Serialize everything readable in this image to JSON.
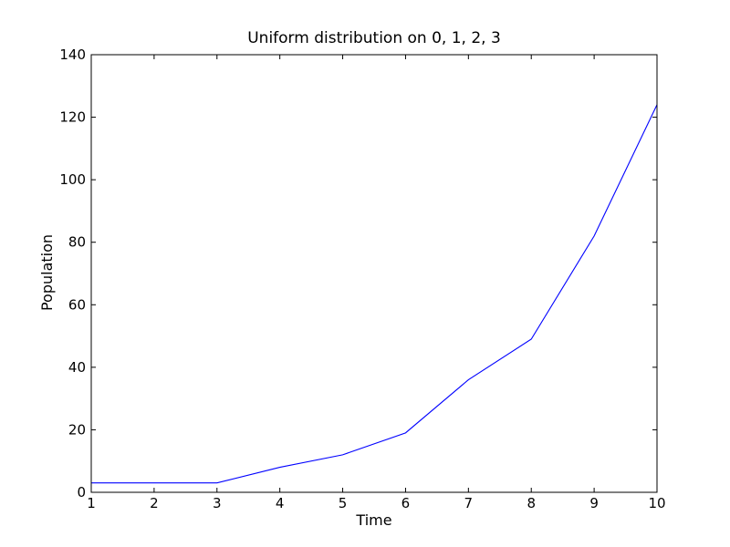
{
  "chart_data": {
    "type": "line",
    "title": "Uniform distribution on 0, 1, 2, 3",
    "xlabel": "Time",
    "ylabel": "Population",
    "xlim": [
      1,
      10
    ],
    "ylim": [
      0,
      140
    ],
    "xticks": [
      1,
      2,
      3,
      4,
      5,
      6,
      7,
      8,
      9,
      10
    ],
    "yticks": [
      0,
      20,
      40,
      60,
      80,
      100,
      120,
      140
    ],
    "grid": false,
    "legend": "none",
    "series": [
      {
        "color": "#0000ff",
        "x": [
          1,
          2,
          3,
          4,
          5,
          6,
          7,
          8,
          9,
          10
        ],
        "y": [
          3,
          3,
          3,
          8,
          12,
          19,
          36,
          49,
          82,
          124
        ]
      }
    ]
  }
}
